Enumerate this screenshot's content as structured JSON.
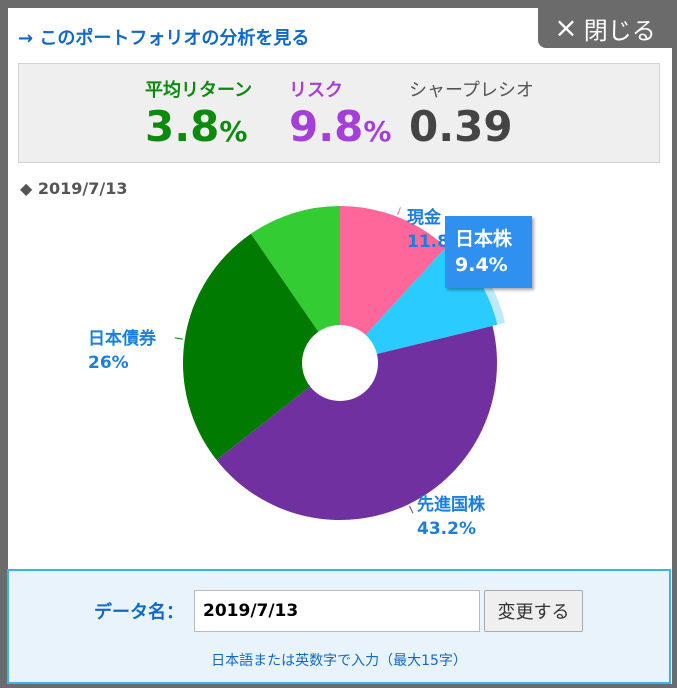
{
  "header": {
    "analysis_link": "→ このポートフォリオの分析を見る",
    "close_icon": "×",
    "close_label": "閉じる"
  },
  "stats": {
    "return_label": "平均リターン",
    "return_value": "3.8",
    "risk_label": "リスク",
    "risk_value": "9.8",
    "percent": "%",
    "sharpe_label": "シャープレシオ",
    "sharpe_value": "0.39"
  },
  "chart": {
    "date_label": "◆ 2019/7/13",
    "tooltip": {
      "name": "日本株",
      "value": "9.4%"
    }
  },
  "chart_data": {
    "type": "pie",
    "title": "",
    "slices": [
      {
        "name": "現金",
        "value": 11.8,
        "label": "11.8%",
        "color": "#ff6699"
      },
      {
        "name": "日本株",
        "value": 9.4,
        "label": "9.4%",
        "color": "#1fc8ff"
      },
      {
        "name": "先進国株",
        "value": 43.2,
        "label": "43.2%",
        "color": "#7030a0"
      },
      {
        "name": "日本債券",
        "value": 26,
        "label": "26%",
        "color": "#007a00"
      },
      {
        "name": "",
        "value": 9.6,
        "label": "",
        "color": "#33cc33"
      }
    ]
  },
  "form": {
    "name_label": "データ名：",
    "name_value": "2019/7/13",
    "change_button": "変更する",
    "hint": "日本語または英数字で入力（最大15字）"
  }
}
